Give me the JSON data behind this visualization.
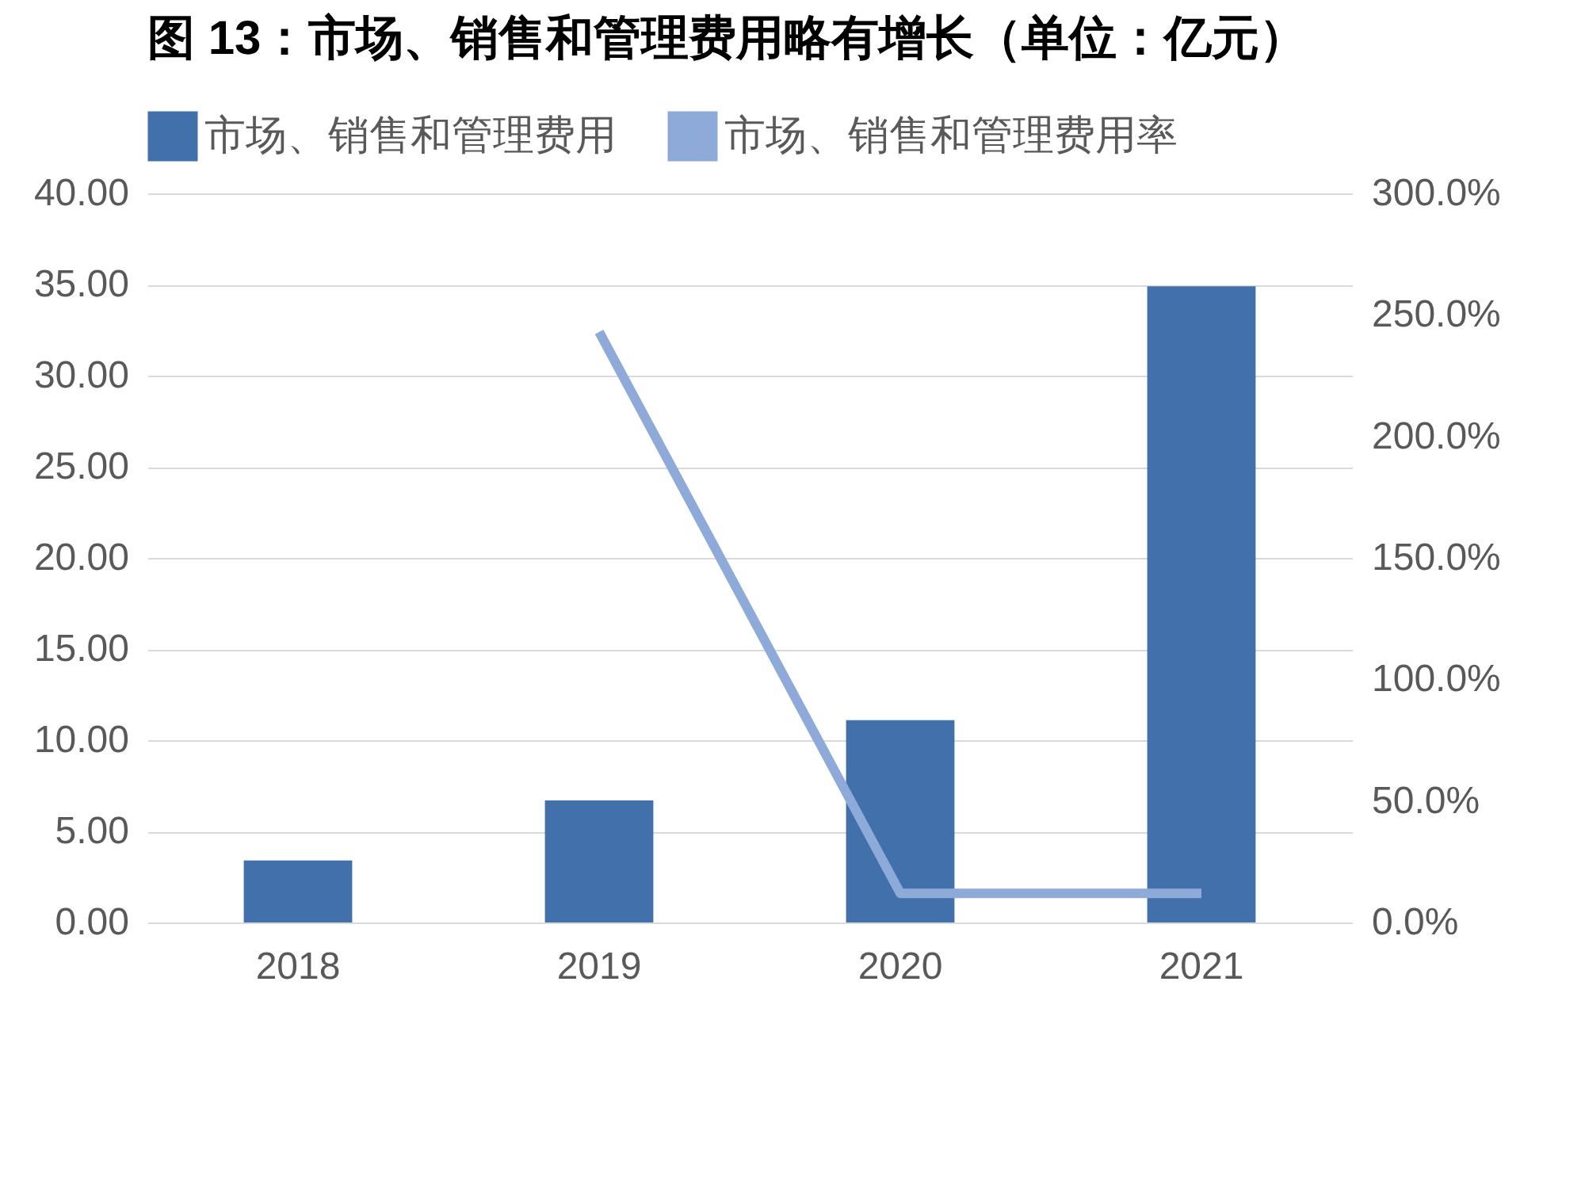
{
  "chart_data": {
    "type": "bar",
    "title": "图 13：市场、销售和管理费用略有增长（单位：亿元）",
    "categories": [
      "2018",
      "2019",
      "2020",
      "2021"
    ],
    "series": [
      {
        "name": "市场、销售和管理费用",
        "color": "#4270ab",
        "values": [
          3.4,
          6.7,
          11.1,
          34.9
        ]
      },
      {
        "name": "市场、销售和管理费用率",
        "type": "line",
        "axis": "y2",
        "color": "#8eaad8",
        "values": [
          null,
          243,
          12,
          12
        ]
      }
    ],
    "ylim": [
      0,
      40
    ],
    "yticks": [
      {
        "value": 0,
        "label": "0.00"
      },
      {
        "value": 5,
        "label": "5.00"
      },
      {
        "value": 10,
        "label": "10.00"
      },
      {
        "value": 15,
        "label": "15.00"
      },
      {
        "value": 20,
        "label": "20.00"
      },
      {
        "value": 25,
        "label": "25.00"
      },
      {
        "value": 30,
        "label": "30.00"
      },
      {
        "value": 35,
        "label": "35.00"
      },
      {
        "value": 40,
        "label": "40.00"
      }
    ],
    "y2lim": [
      0,
      300
    ],
    "y2ticks": [
      {
        "value": 0,
        "label": "0.0%"
      },
      {
        "value": 50,
        "label": "50.0%"
      },
      {
        "value": 100,
        "label": "100.0%"
      },
      {
        "value": 150,
        "label": "150.0%"
      },
      {
        "value": 200,
        "label": "200.0%"
      },
      {
        "value": 250,
        "label": "250.0%"
      },
      {
        "value": 300,
        "label": "300.0%"
      }
    ],
    "grid": "y",
    "legend": "top",
    "marker": "none",
    "line_style": "solid"
  }
}
